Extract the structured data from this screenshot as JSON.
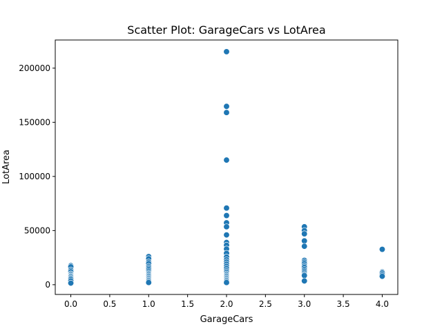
{
  "chart_data": {
    "type": "scatter",
    "title": "Scatter Plot: GarageCars vs LotArea",
    "xlabel": "GarageCars",
    "ylabel": "LotArea",
    "xlim": [
      -0.2,
      4.2
    ],
    "ylim": [
      -9000,
      226000
    ],
    "x_ticks": [
      0.0,
      0.5,
      1.0,
      1.5,
      2.0,
      2.5,
      3.0,
      3.5,
      4.0
    ],
    "x_tick_labels": [
      "0.0",
      "0.5",
      "1.0",
      "1.5",
      "2.0",
      "2.5",
      "3.0",
      "3.5",
      "4.0"
    ],
    "y_ticks": [
      0,
      50000,
      100000,
      150000,
      200000
    ],
    "y_tick_labels": [
      "0",
      "50000",
      "100000",
      "150000",
      "200000"
    ],
    "grid": false,
    "legend": "none",
    "marker_color": "#1f77b4",
    "points": [
      {
        "x": 0,
        "y": 17600
      },
      {
        "x": 0,
        "y": 16500
      },
      {
        "x": 0,
        "y": 13500
      },
      {
        "x": 0,
        "y": 12000
      },
      {
        "x": 0,
        "y": 10000
      },
      {
        "x": 0,
        "y": 9000
      },
      {
        "x": 0,
        "y": 8000
      },
      {
        "x": 0,
        "y": 7200
      },
      {
        "x": 0,
        "y": 6000
      },
      {
        "x": 0,
        "y": 5000
      },
      {
        "x": 0,
        "y": 3500
      },
      {
        "x": 0,
        "y": 1500
      },
      {
        "x": 1,
        "y": 26000
      },
      {
        "x": 1,
        "y": 24000
      },
      {
        "x": 1,
        "y": 21000
      },
      {
        "x": 1,
        "y": 19500
      },
      {
        "x": 1,
        "y": 17000
      },
      {
        "x": 1,
        "y": 15500
      },
      {
        "x": 1,
        "y": 14000
      },
      {
        "x": 1,
        "y": 12500
      },
      {
        "x": 1,
        "y": 11000
      },
      {
        "x": 1,
        "y": 10000
      },
      {
        "x": 1,
        "y": 9000
      },
      {
        "x": 1,
        "y": 8000
      },
      {
        "x": 1,
        "y": 7000
      },
      {
        "x": 1,
        "y": 6000
      },
      {
        "x": 1,
        "y": 5000
      },
      {
        "x": 1,
        "y": 4000
      },
      {
        "x": 1,
        "y": 3000
      },
      {
        "x": 1,
        "y": 2000
      },
      {
        "x": 2,
        "y": 215200
      },
      {
        "x": 2,
        "y": 164700
      },
      {
        "x": 2,
        "y": 159000
      },
      {
        "x": 2,
        "y": 115100
      },
      {
        "x": 2,
        "y": 70800
      },
      {
        "x": 2,
        "y": 63900
      },
      {
        "x": 2,
        "y": 57200
      },
      {
        "x": 2,
        "y": 53500
      },
      {
        "x": 2,
        "y": 46000
      },
      {
        "x": 2,
        "y": 39000
      },
      {
        "x": 2,
        "y": 36500
      },
      {
        "x": 2,
        "y": 33000
      },
      {
        "x": 2,
        "y": 29000
      },
      {
        "x": 2,
        "y": 25500
      },
      {
        "x": 2,
        "y": 23000
      },
      {
        "x": 2,
        "y": 21000
      },
      {
        "x": 2,
        "y": 19000
      },
      {
        "x": 2,
        "y": 17000
      },
      {
        "x": 2,
        "y": 15000
      },
      {
        "x": 2,
        "y": 13000
      },
      {
        "x": 2,
        "y": 11500
      },
      {
        "x": 2,
        "y": 10000
      },
      {
        "x": 2,
        "y": 9000
      },
      {
        "x": 2,
        "y": 8000
      },
      {
        "x": 2,
        "y": 7000
      },
      {
        "x": 2,
        "y": 6000
      },
      {
        "x": 2,
        "y": 5000
      },
      {
        "x": 2,
        "y": 4000
      },
      {
        "x": 2,
        "y": 3000
      },
      {
        "x": 2,
        "y": 2000
      },
      {
        "x": 3,
        "y": 53500
      },
      {
        "x": 3,
        "y": 50000
      },
      {
        "x": 3,
        "y": 47000
      },
      {
        "x": 3,
        "y": 40500
      },
      {
        "x": 3,
        "y": 35500
      },
      {
        "x": 3,
        "y": 22500
      },
      {
        "x": 3,
        "y": 21000
      },
      {
        "x": 3,
        "y": 19500
      },
      {
        "x": 3,
        "y": 17500
      },
      {
        "x": 3,
        "y": 16000
      },
      {
        "x": 3,
        "y": 14000
      },
      {
        "x": 3,
        "y": 12500
      },
      {
        "x": 3,
        "y": 11000
      },
      {
        "x": 3,
        "y": 9500
      },
      {
        "x": 3,
        "y": 8500
      },
      {
        "x": 3,
        "y": 3500
      },
      {
        "x": 4,
        "y": 32700
      },
      {
        "x": 4,
        "y": 11700
      },
      {
        "x": 4,
        "y": 10800
      },
      {
        "x": 4,
        "y": 9200
      },
      {
        "x": 4,
        "y": 7800
      }
    ]
  }
}
